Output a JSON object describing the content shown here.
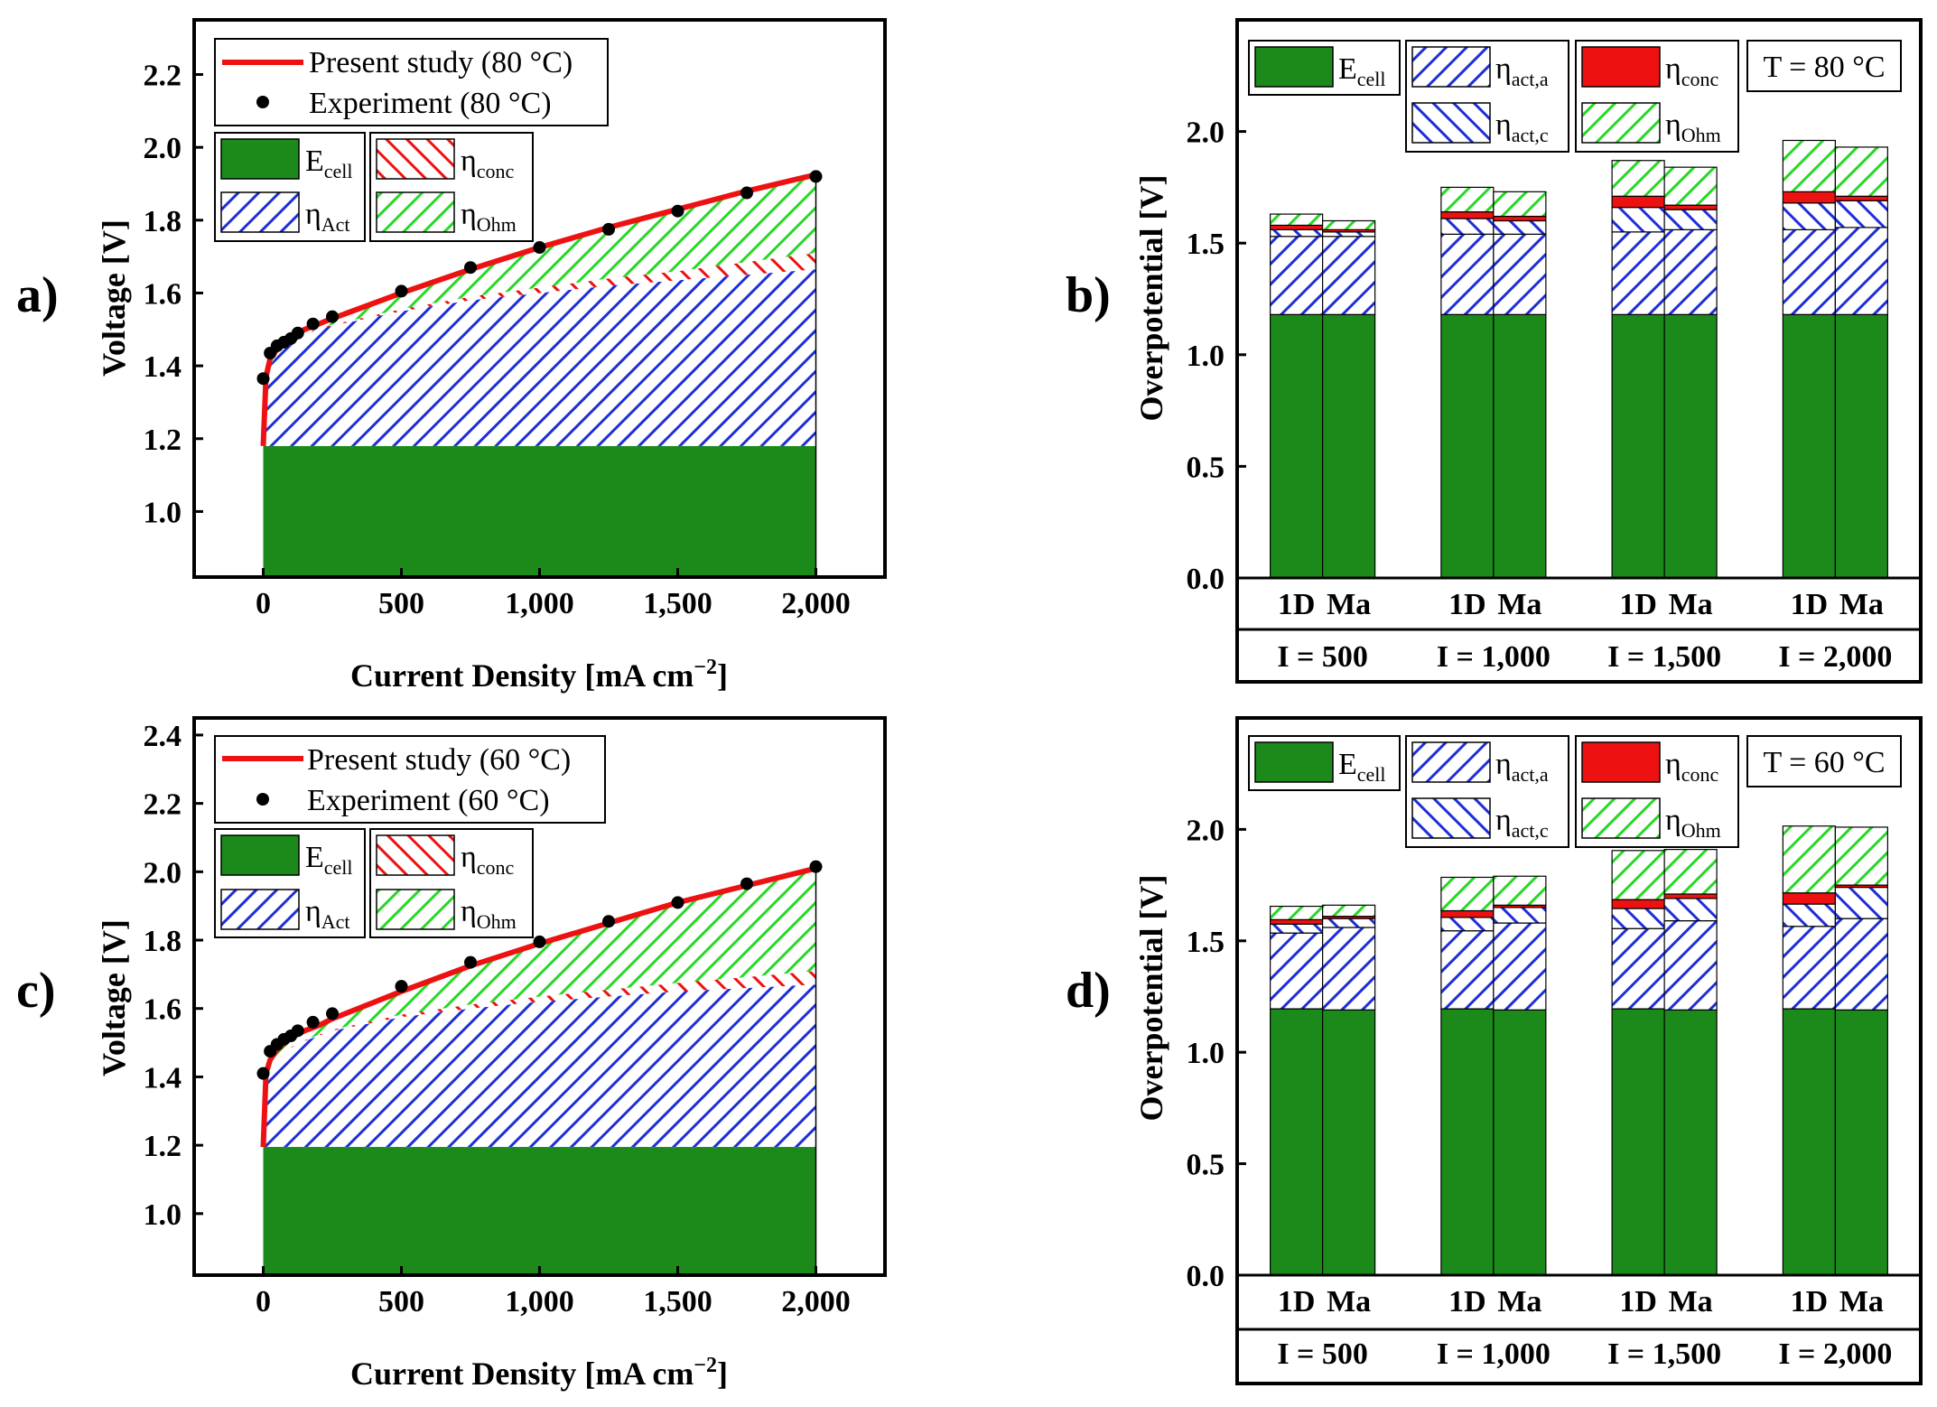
{
  "colors": {
    "green": "#1b8a1b",
    "blue": "#1f2fd6",
    "red": "#ee1111",
    "lightgreen": "#27d827",
    "line": "#ee1111",
    "point": "#000000"
  },
  "chart_data": [
    {
      "id": "a",
      "type": "area",
      "panel_label": "a)",
      "xlabel": "Current Density [mA cm",
      "xlabel_sup": "−2",
      "xlabel_end": "]",
      "ylabel": "Voltage [V]",
      "xlim": [
        -250,
        2250
      ],
      "ylim": [
        0.82,
        2.35
      ],
      "xticks": [
        0,
        500,
        1000,
        1500,
        2000
      ],
      "xtick_labels": [
        "0",
        "500",
        "1,000",
        "1,500",
        "2,000"
      ],
      "yticks": [
        1.0,
        1.2,
        1.4,
        1.6,
        1.8,
        2.0,
        2.2
      ],
      "ytick_labels": [
        "1.0",
        "1.2",
        "1.4",
        "1.6",
        "1.8",
        "2.0",
        "2.2"
      ],
      "e_cell": 1.18,
      "x": [
        0,
        10,
        25,
        50,
        100,
        150,
        200,
        250,
        500,
        750,
        1000,
        1250,
        1500,
        1750,
        2000
      ],
      "act_top": [
        1.18,
        1.35,
        1.4,
        1.43,
        1.465,
        1.485,
        1.5,
        1.51,
        1.55,
        1.58,
        1.6,
        1.62,
        1.635,
        1.65,
        1.665
      ],
      "conc_top": [
        1.18,
        1.35,
        1.4,
        1.43,
        1.466,
        1.487,
        1.502,
        1.513,
        1.556,
        1.59,
        1.615,
        1.64,
        1.66,
        1.685,
        1.71
      ],
      "total": [
        1.18,
        1.37,
        1.42,
        1.445,
        1.48,
        1.5,
        1.515,
        1.53,
        1.6,
        1.665,
        1.725,
        1.78,
        1.83,
        1.88,
        1.925
      ],
      "exp_x": [
        0,
        25,
        50,
        75,
        100,
        125,
        180,
        250,
        500,
        750,
        1000,
        1250,
        1500,
        1750,
        2000
      ],
      "exp_y": [
        1.365,
        1.435,
        1.455,
        1.465,
        1.475,
        1.49,
        1.515,
        1.535,
        1.605,
        1.67,
        1.725,
        1.775,
        1.825,
        1.875,
        1.92
      ],
      "legend": {
        "line": "Present study (80 °C)",
        "points": "Experiment (80 °C)",
        "e": "E",
        "e_sub": "cell",
        "conc": "η",
        "conc_sub": "conc",
        "act": "η",
        "act_sub": "Act",
        "ohm": "η",
        "ohm_sub": "Ohm"
      }
    },
    {
      "id": "b",
      "type": "bar",
      "stacked": true,
      "panel_label": "b)",
      "ylabel": "Overpotential [V]",
      "ylim": [
        0,
        2.5
      ],
      "yticks": [
        0.0,
        0.5,
        1.0,
        1.5,
        2.0
      ],
      "ytick_labels": [
        "0.0",
        "0.5",
        "1.0",
        "1.5",
        "2.0"
      ],
      "categories": [
        "1D",
        "Ma",
        "1D",
        "Ma",
        "1D",
        "Ma",
        "1D",
        "Ma"
      ],
      "group_labels": [
        "I = 500",
        "I = 1,000",
        "I = 1,500",
        "I = 2,000"
      ],
      "series": [
        {
          "name": "E_cell",
          "values": [
            1.18,
            1.18,
            1.18,
            1.18,
            1.18,
            1.18,
            1.18,
            1.18
          ]
        },
        {
          "name": "η_act,a",
          "values": [
            0.35,
            0.35,
            0.36,
            0.36,
            0.37,
            0.38,
            0.38,
            0.39
          ]
        },
        {
          "name": "η_act,c",
          "values": [
            0.03,
            0.02,
            0.07,
            0.06,
            0.11,
            0.09,
            0.12,
            0.12
          ]
        },
        {
          "name": "η_conc",
          "values": [
            0.02,
            0.01,
            0.03,
            0.02,
            0.05,
            0.02,
            0.05,
            0.02
          ]
        },
        {
          "name": "η_Ohm",
          "values": [
            0.05,
            0.04,
            0.11,
            0.11,
            0.16,
            0.17,
            0.23,
            0.22
          ]
        }
      ],
      "legend": {
        "e": "E",
        "e_sub": "cell",
        "acta": "η",
        "acta_sub": "act,a",
        "actc": "η",
        "actc_sub": "act,c",
        "conc": "η",
        "conc_sub": "conc",
        "ohm": "η",
        "ohm_sub": "Ohm",
        "temp": "T = 80 °C"
      }
    },
    {
      "id": "c",
      "type": "area",
      "panel_label": "c)",
      "xlabel": "Current Density [mA cm",
      "xlabel_sup": "−2",
      "xlabel_end": "]",
      "ylabel": "Voltage [V]",
      "xlim": [
        -250,
        2250
      ],
      "ylim": [
        0.82,
        2.45
      ],
      "xticks": [
        0,
        500,
        1000,
        1500,
        2000
      ],
      "xtick_labels": [
        "0",
        "500",
        "1,000",
        "1,500",
        "2,000"
      ],
      "yticks": [
        1.0,
        1.2,
        1.4,
        1.6,
        1.8,
        2.0,
        2.2,
        2.4
      ],
      "ytick_labels": [
        "1.0",
        "1.2",
        "1.4",
        "1.6",
        "1.8",
        "2.0",
        "2.2",
        "2.4"
      ],
      "e_cell": 1.195,
      "x": [
        0,
        10,
        25,
        50,
        100,
        150,
        200,
        250,
        500,
        750,
        1000,
        1250,
        1500,
        1750,
        2000
      ],
      "act_top": [
        1.195,
        1.38,
        1.42,
        1.45,
        1.485,
        1.505,
        1.52,
        1.535,
        1.575,
        1.6,
        1.62,
        1.635,
        1.65,
        1.66,
        1.67
      ],
      "conc_top": [
        1.195,
        1.38,
        1.42,
        1.45,
        1.487,
        1.507,
        1.523,
        1.538,
        1.582,
        1.612,
        1.635,
        1.655,
        1.675,
        1.692,
        1.71
      ],
      "total": [
        1.195,
        1.41,
        1.45,
        1.48,
        1.515,
        1.535,
        1.55,
        1.57,
        1.65,
        1.725,
        1.79,
        1.85,
        1.91,
        1.96,
        2.01
      ],
      "exp_x": [
        0,
        25,
        50,
        75,
        100,
        125,
        180,
        250,
        500,
        750,
        1000,
        1250,
        1500,
        1750,
        2000
      ],
      "exp_y": [
        1.41,
        1.475,
        1.495,
        1.51,
        1.52,
        1.535,
        1.56,
        1.585,
        1.665,
        1.735,
        1.795,
        1.855,
        1.91,
        1.965,
        2.015
      ],
      "legend": {
        "line": "Present study (60 °C)",
        "points": "Experiment (60 °C)",
        "e": "E",
        "e_sub": "cell",
        "conc": "η",
        "conc_sub": "conc",
        "act": "η",
        "act_sub": "Act",
        "ohm": "η",
        "ohm_sub": "Ohm"
      }
    },
    {
      "id": "d",
      "type": "bar",
      "stacked": true,
      "panel_label": "d)",
      "ylabel": "Overpotential [V]",
      "ylim": [
        0,
        2.5
      ],
      "yticks": [
        0.0,
        0.5,
        1.0,
        1.5,
        2.0
      ],
      "ytick_labels": [
        "0.0",
        "0.5",
        "1.0",
        "1.5",
        "2.0"
      ],
      "categories": [
        "1D",
        "Ma",
        "1D",
        "Ma",
        "1D",
        "Ma",
        "1D",
        "Ma"
      ],
      "group_labels": [
        "I = 500",
        "I = 1,000",
        "I = 1,500",
        "I = 2,000"
      ],
      "series": [
        {
          "name": "E_cell",
          "values": [
            1.195,
            1.19,
            1.195,
            1.19,
            1.195,
            1.19,
            1.195,
            1.19
          ]
        },
        {
          "name": "η_act,a",
          "values": [
            0.34,
            0.37,
            0.35,
            0.39,
            0.36,
            0.4,
            0.37,
            0.41
          ]
        },
        {
          "name": "η_act,c",
          "values": [
            0.04,
            0.04,
            0.06,
            0.07,
            0.09,
            0.1,
            0.1,
            0.14
          ]
        },
        {
          "name": "η_conc",
          "values": [
            0.02,
            0.01,
            0.03,
            0.01,
            0.04,
            0.02,
            0.05,
            0.01
          ]
        },
        {
          "name": "η_Ohm",
          "values": [
            0.06,
            0.05,
            0.15,
            0.13,
            0.22,
            0.2,
            0.3,
            0.26
          ]
        }
      ],
      "legend": {
        "e": "E",
        "e_sub": "cell",
        "acta": "η",
        "acta_sub": "act,a",
        "actc": "η",
        "actc_sub": "act,c",
        "conc": "η",
        "conc_sub": "conc",
        "ohm": "η",
        "ohm_sub": "Ohm",
        "temp": "T = 60 °C"
      }
    }
  ]
}
